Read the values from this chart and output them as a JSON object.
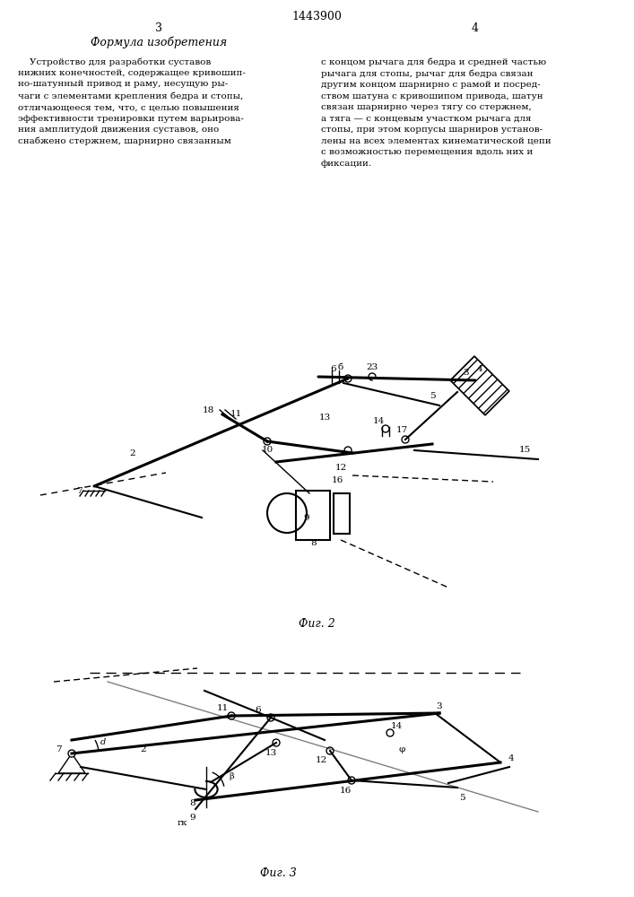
{
  "title": "1443900",
  "page_left": "3",
  "page_right": "4",
  "formula_title": "Формула изобретения",
  "text_left": "Устройство для разработки суставов нижних конечностей, содержащее кривошипно-шатунный привод и раму, несущую рычаги с элементами крепления бедра и стопы, отличающееся тем, что, с целью повышения эффективности тренировки путем варьирования амплитудой движения суставов, оно снабжено стержнем, шарнирно связанным",
  "text_right": "с концом рычага для бедра и средней частью рычага для стопы, рычаг для бедра связан другим концом шарнирно с рамой и посредством шатуна с кривошипом привода, шатун связан шарнирно через тягу со стержнем, а тяга — с концевым участком рычага для стопы, при этом корпусы шарниров установлены на всех элементах кинематической цепи с возможностью перемещения вдоль них и фиксации.",
  "fig2_label": "Фиг. 2",
  "fig3_label": "Фиг. 3",
  "bg_color": "#ffffff",
  "line_color": "#000000",
  "text_color": "#000000"
}
